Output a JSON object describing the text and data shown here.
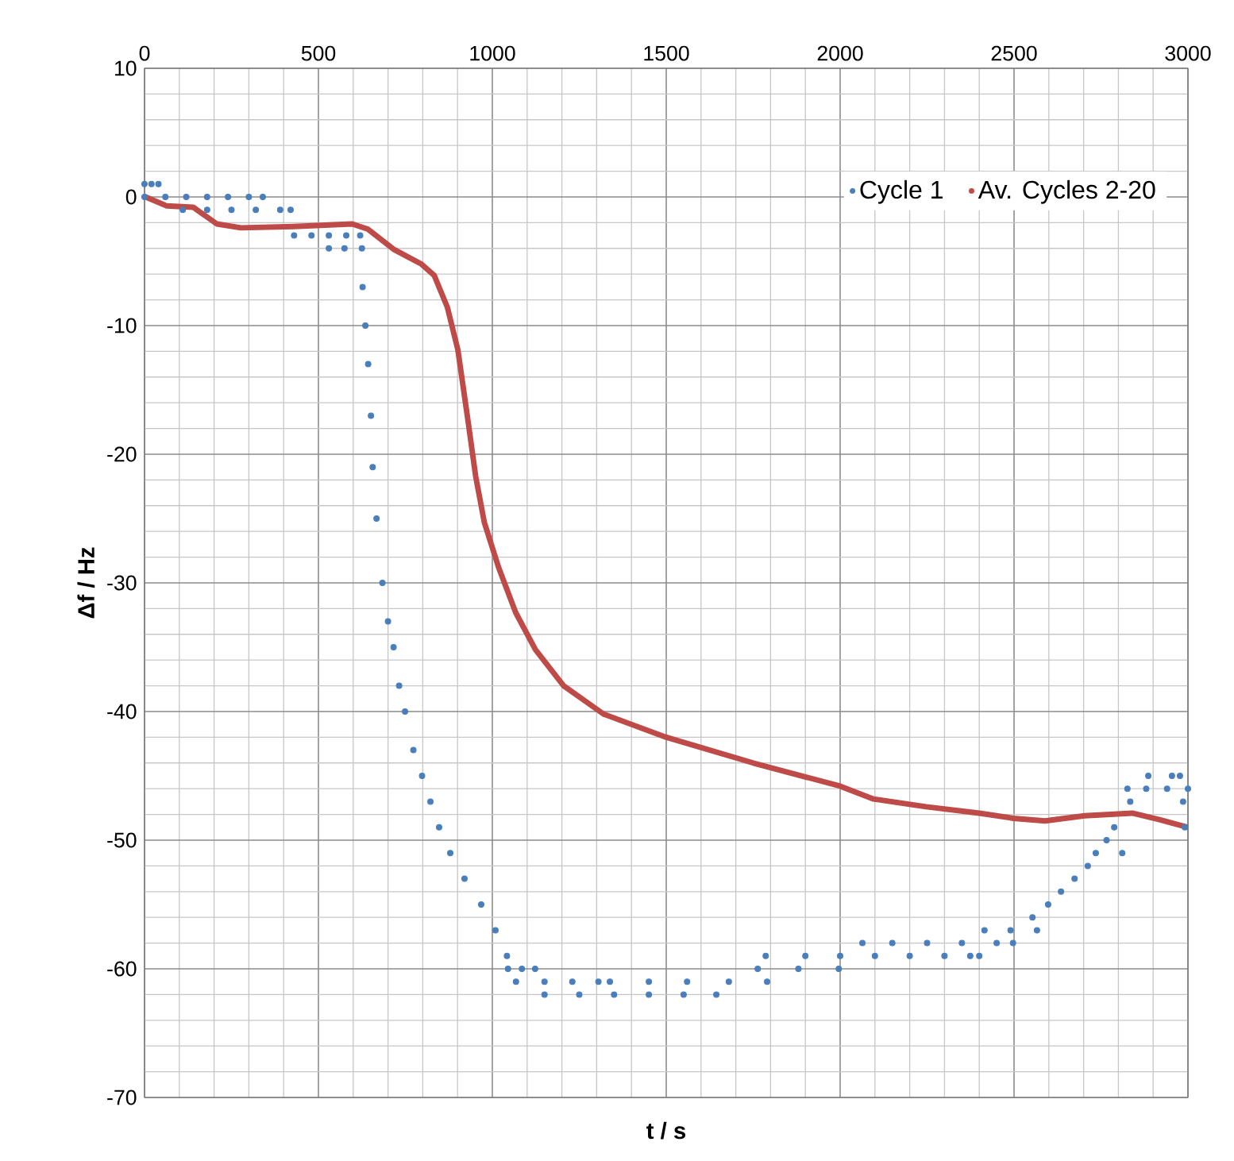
{
  "chart_data": {
    "type": "scatter",
    "xlabel": "t / s",
    "ylabel": "Δf / Hz",
    "xlim": [
      0,
      3000
    ],
    "xticks": [
      0,
      500,
      1000,
      1500,
      2000,
      2500,
      3000
    ],
    "ylim": [
      -70,
      10
    ],
    "yticks": [
      -70,
      -60,
      -50,
      -40,
      -30,
      -20,
      -10,
      0,
      10
    ],
    "grid": true,
    "legend": "top right",
    "series": [
      {
        "name": "Cycle 1",
        "color": "#4a7ebb",
        "marker": "circle",
        "x": [
          0,
          20,
          40,
          0,
          60,
          120,
          180,
          240,
          300,
          340,
          110,
          180,
          250,
          320,
          390,
          420,
          430,
          480,
          530,
          580,
          620,
          530,
          575,
          625,
          627,
          635,
          643,
          651,
          656,
          667,
          684,
          700,
          716,
          732,
          749,
          773,
          798,
          822,
          847,
          879,
          920,
          968,
          1009,
          1042,
          1045,
          1085,
          1123,
          1068,
          1150,
          1230,
          1305,
          1338,
          1450,
          1560,
          1680,
          1790,
          1150,
          1250,
          1350,
          1450,
          1550,
          1644,
          1763,
          1880,
          1996,
          1786,
          1900,
          2000,
          2100,
          2200,
          2300,
          2374,
          2400,
          2064,
          2150,
          2250,
          2350,
          2450,
          2497,
          2415,
          2490,
          2566,
          2553,
          2598,
          2635,
          2674,
          2712,
          2735,
          2766,
          2788,
          2811,
          2834,
          2826,
          2880,
          2940,
          3000,
          2886,
          2954,
          2977,
          2986,
          2991
        ],
        "values": [
          1,
          1,
          1,
          0,
          0,
          0,
          0,
          0,
          0,
          0,
          -1,
          -1,
          -1,
          -1,
          -1,
          -1,
          -3,
          -3,
          -3,
          -3,
          -3,
          -4,
          -4,
          -4,
          -7,
          -10,
          -13,
          -17,
          -21,
          -25,
          -30,
          -33,
          -35,
          -38,
          -40,
          -43,
          -45,
          -47,
          -49,
          -51,
          -53,
          -55,
          -57,
          -59,
          -60,
          -60,
          -60,
          -61,
          -61,
          -61,
          -61,
          -61,
          -61,
          -61,
          -61,
          -61,
          -62,
          -62,
          -62,
          -62,
          -62,
          -62,
          -60,
          -60,
          -60,
          -59,
          -59,
          -59,
          -59,
          -59,
          -59,
          -59,
          -59,
          -58,
          -58,
          -58,
          -58,
          -58,
          -58,
          -57,
          -57,
          -57,
          -56,
          -55,
          -54,
          -53,
          -52,
          -51,
          -50,
          -49,
          -51,
          -47,
          -46,
          -46,
          -46,
          -46,
          -45,
          -45,
          -45,
          -47,
          -49
        ]
      },
      {
        "name": "Av. Cycles 2-20",
        "color": "#be4b48",
        "type": "line",
        "marker": "none",
        "x": [
          3,
          64,
          140,
          208,
          277,
          429,
          597,
          642,
          718,
          795,
          833,
          871,
          901,
          930,
          952,
          977,
          1018,
          1067,
          1124,
          1205,
          1320,
          1500,
          1750,
          2000,
          2096,
          2247,
          2400,
          2498,
          2589,
          2703,
          2840,
          2918,
          3000
        ],
        "values": [
          0,
          -0.7,
          -0.8,
          -2.1,
          -2.4,
          -2.3,
          -2.1,
          -2.5,
          -4.1,
          -5.2,
          -6.1,
          -8.6,
          -11.9,
          -17.4,
          -21.7,
          -25.3,
          -28.8,
          -32.3,
          -35.2,
          -38.0,
          -40.2,
          -42.0,
          -44.0,
          -45.8,
          -46.8,
          -47.4,
          -47.9,
          -48.3,
          -48.5,
          -48.1,
          -47.9,
          -48.4,
          -49.0
        ]
      }
    ]
  }
}
